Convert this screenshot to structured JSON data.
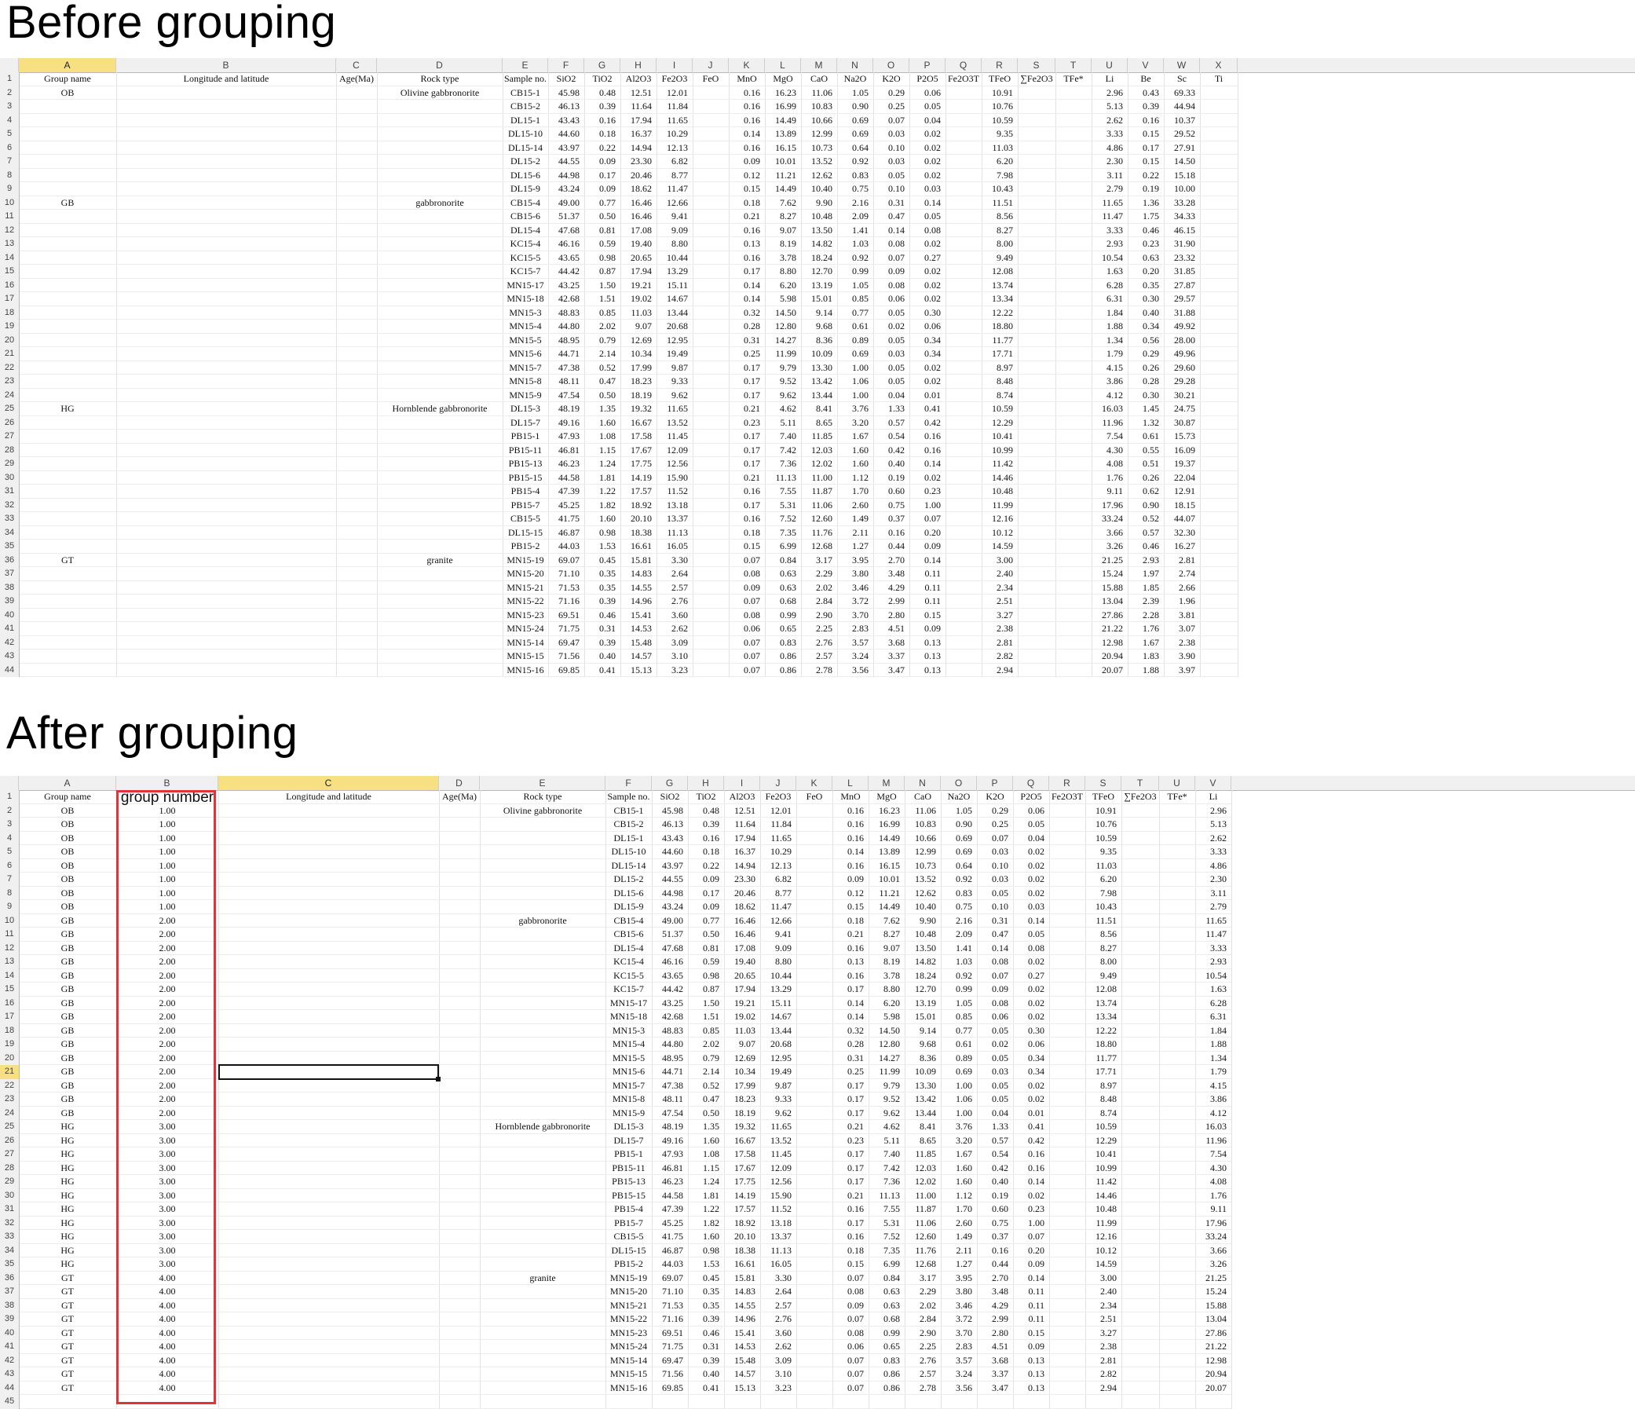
{
  "headings": {
    "before": "Before grouping",
    "after": "After grouping"
  },
  "colors": {
    "header_bg": "#f0f0f0",
    "selected_header": "#f6e081",
    "highlight_box": "#e0343a"
  },
  "table_rows": [
    [
      "OB",
      "Olivine gabbronorite",
      "CB15-1",
      "45.98",
      "0.48",
      "12.51",
      "12.01",
      "0.16",
      "16.23",
      "11.06",
      "1.05",
      "0.29",
      "0.06",
      "10.91",
      "2.96",
      "0.43",
      "69.33"
    ],
    [
      "OB",
      "",
      "CB15-2",
      "46.13",
      "0.39",
      "11.64",
      "11.84",
      "0.16",
      "16.99",
      "10.83",
      "0.90",
      "0.25",
      "0.05",
      "10.76",
      "5.13",
      "0.39",
      "44.94"
    ],
    [
      "OB",
      "",
      "DL15-1",
      "43.43",
      "0.16",
      "17.94",
      "11.65",
      "0.16",
      "14.49",
      "10.66",
      "0.69",
      "0.07",
      "0.04",
      "10.59",
      "2.62",
      "0.16",
      "10.37"
    ],
    [
      "OB",
      "",
      "DL15-10",
      "44.60",
      "0.18",
      "16.37",
      "10.29",
      "0.14",
      "13.89",
      "12.99",
      "0.69",
      "0.03",
      "0.02",
      "9.35",
      "3.33",
      "0.15",
      "29.52"
    ],
    [
      "OB",
      "",
      "DL15-14",
      "43.97",
      "0.22",
      "14.94",
      "12.13",
      "0.16",
      "16.15",
      "10.73",
      "0.64",
      "0.10",
      "0.02",
      "11.03",
      "4.86",
      "0.17",
      "27.91"
    ],
    [
      "OB",
      "",
      "DL15-2",
      "44.55",
      "0.09",
      "23.30",
      "6.82",
      "0.09",
      "10.01",
      "13.52",
      "0.92",
      "0.03",
      "0.02",
      "6.20",
      "2.30",
      "0.15",
      "14.50"
    ],
    [
      "OB",
      "",
      "DL15-6",
      "44.98",
      "0.17",
      "20.46",
      "8.77",
      "0.12",
      "11.21",
      "12.62",
      "0.83",
      "0.05",
      "0.02",
      "7.98",
      "3.11",
      "0.22",
      "15.18"
    ],
    [
      "OB",
      "",
      "DL15-9",
      "43.24",
      "0.09",
      "18.62",
      "11.47",
      "0.15",
      "14.49",
      "10.40",
      "0.75",
      "0.10",
      "0.03",
      "10.43",
      "2.79",
      "0.19",
      "10.00"
    ],
    [
      "GB",
      "gabbronorite",
      "CB15-4",
      "49.00",
      "0.77",
      "16.46",
      "12.66",
      "0.18",
      "7.62",
      "9.90",
      "2.16",
      "0.31",
      "0.14",
      "11.51",
      "11.65",
      "1.36",
      "33.28"
    ],
    [
      "GB",
      "",
      "CB15-6",
      "51.37",
      "0.50",
      "16.46",
      "9.41",
      "0.21",
      "8.27",
      "10.48",
      "2.09",
      "0.47",
      "0.05",
      "8.56",
      "11.47",
      "1.75",
      "34.33"
    ],
    [
      "GB",
      "",
      "DL15-4",
      "47.68",
      "0.81",
      "17.08",
      "9.09",
      "0.16",
      "9.07",
      "13.50",
      "1.41",
      "0.14",
      "0.08",
      "8.27",
      "3.33",
      "0.46",
      "46.15"
    ],
    [
      "GB",
      "",
      "KC15-4",
      "46.16",
      "0.59",
      "19.40",
      "8.80",
      "0.13",
      "8.19",
      "14.82",
      "1.03",
      "0.08",
      "0.02",
      "8.00",
      "2.93",
      "0.23",
      "31.90"
    ],
    [
      "GB",
      "",
      "KC15-5",
      "43.65",
      "0.98",
      "20.65",
      "10.44",
      "0.16",
      "3.78",
      "18.24",
      "0.92",
      "0.07",
      "0.27",
      "9.49",
      "10.54",
      "0.63",
      "23.32"
    ],
    [
      "GB",
      "",
      "KC15-7",
      "44.42",
      "0.87",
      "17.94",
      "13.29",
      "0.17",
      "8.80",
      "12.70",
      "0.99",
      "0.09",
      "0.02",
      "12.08",
      "1.63",
      "0.20",
      "31.85"
    ],
    [
      "GB",
      "",
      "MN15-17",
      "43.25",
      "1.50",
      "19.21",
      "15.11",
      "0.14",
      "6.20",
      "13.19",
      "1.05",
      "0.08",
      "0.02",
      "13.74",
      "6.28",
      "0.35",
      "27.87"
    ],
    [
      "GB",
      "",
      "MN15-18",
      "42.68",
      "1.51",
      "19.02",
      "14.67",
      "0.14",
      "5.98",
      "15.01",
      "0.85",
      "0.06",
      "0.02",
      "13.34",
      "6.31",
      "0.30",
      "29.57"
    ],
    [
      "GB",
      "",
      "MN15-3",
      "48.83",
      "0.85",
      "11.03",
      "13.44",
      "0.32",
      "14.50",
      "9.14",
      "0.77",
      "0.05",
      "0.30",
      "12.22",
      "1.84",
      "0.40",
      "31.88"
    ],
    [
      "GB",
      "",
      "MN15-4",
      "44.80",
      "2.02",
      "9.07",
      "20.68",
      "0.28",
      "12.80",
      "9.68",
      "0.61",
      "0.02",
      "0.06",
      "18.80",
      "1.88",
      "0.34",
      "49.92"
    ],
    [
      "GB",
      "",
      "MN15-5",
      "48.95",
      "0.79",
      "12.69",
      "12.95",
      "0.31",
      "14.27",
      "8.36",
      "0.89",
      "0.05",
      "0.34",
      "11.77",
      "1.34",
      "0.56",
      "28.00"
    ],
    [
      "GB",
      "",
      "MN15-6",
      "44.71",
      "2.14",
      "10.34",
      "19.49",
      "0.25",
      "11.99",
      "10.09",
      "0.69",
      "0.03",
      "0.34",
      "17.71",
      "1.79",
      "0.29",
      "49.96"
    ],
    [
      "GB",
      "",
      "MN15-7",
      "47.38",
      "0.52",
      "17.99",
      "9.87",
      "0.17",
      "9.79",
      "13.30",
      "1.00",
      "0.05",
      "0.02",
      "8.97",
      "4.15",
      "0.26",
      "29.60"
    ],
    [
      "GB",
      "",
      "MN15-8",
      "48.11",
      "0.47",
      "18.23",
      "9.33",
      "0.17",
      "9.52",
      "13.42",
      "1.06",
      "0.05",
      "0.02",
      "8.48",
      "3.86",
      "0.28",
      "29.28"
    ],
    [
      "GB",
      "",
      "MN15-9",
      "47.54",
      "0.50",
      "18.19",
      "9.62",
      "0.17",
      "9.62",
      "13.44",
      "1.00",
      "0.04",
      "0.01",
      "8.74",
      "4.12",
      "0.30",
      "30.21"
    ],
    [
      "HG",
      "Hornblende gabbronorite",
      "DL15-3",
      "48.19",
      "1.35",
      "19.32",
      "11.65",
      "0.21",
      "4.62",
      "8.41",
      "3.76",
      "1.33",
      "0.41",
      "10.59",
      "16.03",
      "1.45",
      "24.75"
    ],
    [
      "HG",
      "",
      "DL15-7",
      "49.16",
      "1.60",
      "16.67",
      "13.52",
      "0.23",
      "5.11",
      "8.65",
      "3.20",
      "0.57",
      "0.42",
      "12.29",
      "11.96",
      "1.32",
      "30.87"
    ],
    [
      "HG",
      "",
      "PB15-1",
      "47.93",
      "1.08",
      "17.58",
      "11.45",
      "0.17",
      "7.40",
      "11.85",
      "1.67",
      "0.54",
      "0.16",
      "10.41",
      "7.54",
      "0.61",
      "15.73"
    ],
    [
      "HG",
      "",
      "PB15-11",
      "46.81",
      "1.15",
      "17.67",
      "12.09",
      "0.17",
      "7.42",
      "12.03",
      "1.60",
      "0.42",
      "0.16",
      "10.99",
      "4.30",
      "0.55",
      "16.09"
    ],
    [
      "HG",
      "",
      "PB15-13",
      "46.23",
      "1.24",
      "17.75",
      "12.56",
      "0.17",
      "7.36",
      "12.02",
      "1.60",
      "0.40",
      "0.14",
      "11.42",
      "4.08",
      "0.51",
      "19.37"
    ],
    [
      "HG",
      "",
      "PB15-15",
      "44.58",
      "1.81",
      "14.19",
      "15.90",
      "0.21",
      "11.13",
      "11.00",
      "1.12",
      "0.19",
      "0.02",
      "14.46",
      "1.76",
      "0.26",
      "22.04"
    ],
    [
      "HG",
      "",
      "PB15-4",
      "47.39",
      "1.22",
      "17.57",
      "11.52",
      "0.16",
      "7.55",
      "11.87",
      "1.70",
      "0.60",
      "0.23",
      "10.48",
      "9.11",
      "0.62",
      "12.91"
    ],
    [
      "HG",
      "",
      "PB15-7",
      "45.25",
      "1.82",
      "18.92",
      "13.18",
      "0.17",
      "5.31",
      "11.06",
      "2.60",
      "0.75",
      "1.00",
      "11.99",
      "17.96",
      "0.90",
      "18.15"
    ],
    [
      "HG",
      "",
      "CB15-5",
      "41.75",
      "1.60",
      "20.10",
      "13.37",
      "0.16",
      "7.52",
      "12.60",
      "1.49",
      "0.37",
      "0.07",
      "12.16",
      "33.24",
      "0.52",
      "44.07"
    ],
    [
      "HG",
      "",
      "DL15-15",
      "46.87",
      "0.98",
      "18.38",
      "11.13",
      "0.18",
      "7.35",
      "11.76",
      "2.11",
      "0.16",
      "0.20",
      "10.12",
      "3.66",
      "0.57",
      "32.30"
    ],
    [
      "HG",
      "",
      "PB15-2",
      "44.03",
      "1.53",
      "16.61",
      "16.05",
      "0.15",
      "6.99",
      "12.68",
      "1.27",
      "0.44",
      "0.09",
      "14.59",
      "3.26",
      "0.46",
      "16.27"
    ],
    [
      "GT",
      "granite",
      "MN15-19",
      "69.07",
      "0.45",
      "15.81",
      "3.30",
      "0.07",
      "0.84",
      "3.17",
      "3.95",
      "2.70",
      "0.14",
      "3.00",
      "21.25",
      "2.93",
      "2.81"
    ],
    [
      "GT",
      "",
      "MN15-20",
      "71.10",
      "0.35",
      "14.83",
      "2.64",
      "0.08",
      "0.63",
      "2.29",
      "3.80",
      "3.48",
      "0.11",
      "2.40",
      "15.24",
      "1.97",
      "2.74"
    ],
    [
      "GT",
      "",
      "MN15-21",
      "71.53",
      "0.35",
      "14.55",
      "2.57",
      "0.09",
      "0.63",
      "2.02",
      "3.46",
      "4.29",
      "0.11",
      "2.34",
      "15.88",
      "1.85",
      "2.66"
    ],
    [
      "GT",
      "",
      "MN15-22",
      "71.16",
      "0.39",
      "14.96",
      "2.76",
      "0.07",
      "0.68",
      "2.84",
      "3.72",
      "2.99",
      "0.11",
      "2.51",
      "13.04",
      "2.39",
      "1.96"
    ],
    [
      "GT",
      "",
      "MN15-23",
      "69.51",
      "0.46",
      "15.41",
      "3.60",
      "0.08",
      "0.99",
      "2.90",
      "3.70",
      "2.80",
      "0.15",
      "3.27",
      "27.86",
      "2.28",
      "3.81"
    ],
    [
      "GT",
      "",
      "MN15-24",
      "71.75",
      "0.31",
      "14.53",
      "2.62",
      "0.06",
      "0.65",
      "2.25",
      "2.83",
      "4.51",
      "0.09",
      "2.38",
      "21.22",
      "1.76",
      "3.07"
    ],
    [
      "GT",
      "",
      "MN15-14",
      "69.47",
      "0.39",
      "15.48",
      "3.09",
      "0.07",
      "0.83",
      "2.76",
      "3.57",
      "3.68",
      "0.13",
      "2.81",
      "12.98",
      "1.67",
      "2.38"
    ],
    [
      "GT",
      "",
      "MN15-15",
      "71.56",
      "0.40",
      "14.57",
      "3.10",
      "0.07",
      "0.86",
      "2.57",
      "3.24",
      "3.37",
      "0.13",
      "2.82",
      "20.94",
      "1.83",
      "3.90"
    ],
    [
      "GT",
      "",
      "MN15-16",
      "69.85",
      "0.41",
      "15.13",
      "3.23",
      "0.07",
      "0.86",
      "2.78",
      "3.56",
      "3.47",
      "0.13",
      "2.94",
      "20.07",
      "1.88",
      "3.97"
    ]
  ],
  "sheet1": {
    "col_letters": [
      "A",
      "B",
      "C",
      "D",
      "E",
      "F",
      "G",
      "H",
      "I",
      "J",
      "K",
      "L",
      "M",
      "N",
      "O",
      "P",
      "Q",
      "R",
      "S",
      "T",
      "U",
      "V",
      "W",
      "X"
    ],
    "headers": [
      "Group name",
      "Longitude and latitude",
      "Age(Ma)",
      "Rock type",
      "Sample no.",
      "SiO2",
      "TiO2",
      "Al2O3",
      "Fe2O3",
      "FeO",
      "MnO",
      "MgO",
      "CaO",
      "Na2O",
      "K2O",
      "P2O5",
      "Fe2O3T",
      "TFeO",
      "∑Fe2O3",
      "TFe*",
      "Li",
      "Be",
      "Sc",
      "Ti"
    ],
    "row_numbers": [
      "1",
      "2",
      "3",
      "4",
      "5",
      "6",
      "7",
      "8",
      "9",
      "10",
      "11",
      "12",
      "13",
      "14",
      "15",
      "16",
      "17",
      "18",
      "19",
      "20",
      "21",
      "22",
      "23",
      "24",
      "25",
      "26",
      "27",
      "28",
      "29",
      "30",
      "31",
      "32",
      "33",
      "34",
      "35",
      "36",
      "37",
      "38",
      "39",
      "40",
      "41",
      "42",
      "43",
      "44"
    ]
  },
  "sheet2": {
    "col_letters": [
      "A",
      "B",
      "C",
      "D",
      "E",
      "F",
      "G",
      "H",
      "I",
      "J",
      "K",
      "L",
      "M",
      "N",
      "O",
      "P",
      "Q",
      "R",
      "S",
      "T",
      "U",
      "V"
    ],
    "headers": [
      "Group name",
      "group number",
      "Longitude and latitude",
      "Age(Ma)",
      "Rock type",
      "Sample no.",
      "SiO2",
      "TiO2",
      "Al2O3",
      "Fe2O3",
      "FeO",
      "MnO",
      "MgO",
      "CaO",
      "Na2O",
      "K2O",
      "P2O5",
      "Fe2O3T",
      "TFeO",
      "∑Fe2O3",
      "TFe*",
      "Li"
    ],
    "group_numbers": {
      "OB": "1.00",
      "GB": "2.00",
      "HG": "3.00",
      "GT": "4.00"
    },
    "row_numbers": [
      "1",
      "2",
      "3",
      "4",
      "5",
      "6",
      "7",
      "8",
      "9",
      "10",
      "11",
      "12",
      "13",
      "14",
      "15",
      "16",
      "17",
      "18",
      "19",
      "20",
      "21",
      "22",
      "23",
      "24",
      "25",
      "26",
      "27",
      "28",
      "29",
      "30",
      "31",
      "32",
      "33",
      "34",
      "35",
      "36",
      "37",
      "38",
      "39",
      "40",
      "41",
      "42",
      "43",
      "44",
      "45"
    ]
  }
}
